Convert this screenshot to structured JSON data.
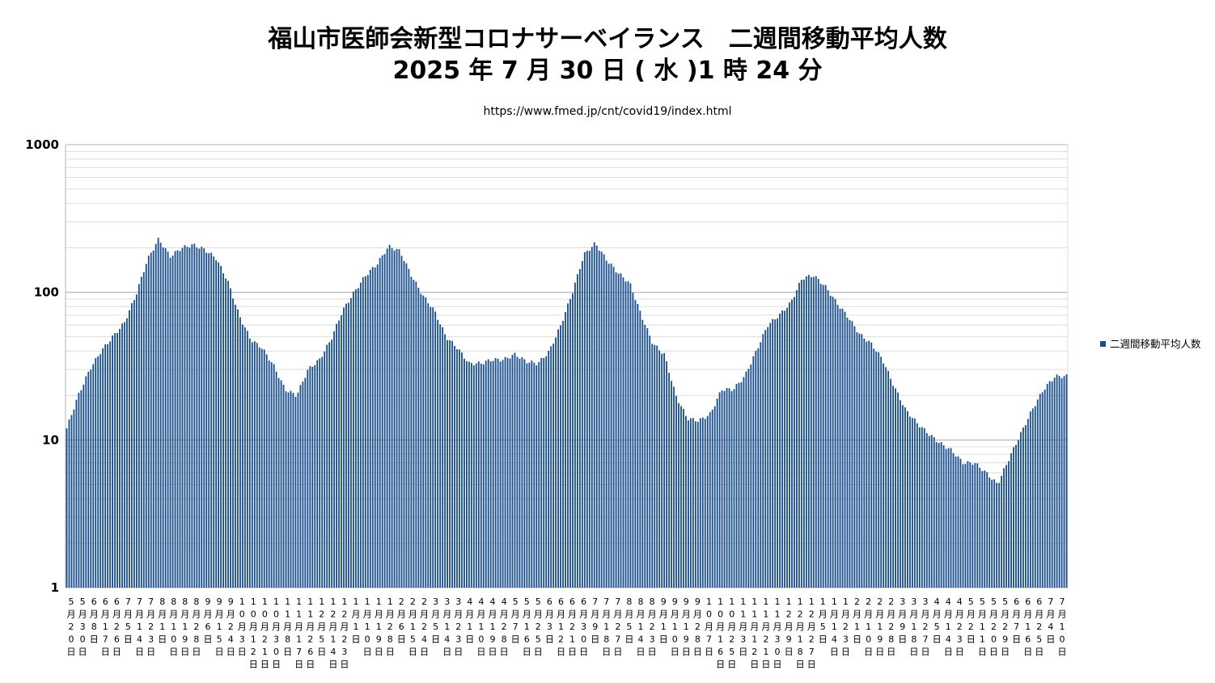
{
  "title_line1": "福山市医師会新型コロナサーベイランス　二週間移動平均人数",
  "title_line2": "2025 年 7 月 30 日 ( 水 )1 時 24 分",
  "subtitle": "https://www.fmed.jp/cnt/covid19/index.html",
  "chart_data": {
    "type": "bar",
    "title": "福山市医師会新型コロナサーベイランス　二週間移動平均人数",
    "y_scale": "log",
    "ylim": [
      1,
      1000
    ],
    "yticks": [
      "1",
      "10",
      "100",
      "1000"
    ],
    "grid": true,
    "legend_position": "right",
    "series": [
      {
        "name": "二週間移動平均人数",
        "color": "#1a4f8c",
        "anchors": [
          [
            "5月20日",
            12
          ],
          [
            "5月30日",
            20
          ],
          [
            "6月8日",
            30
          ],
          [
            "6月17日",
            40
          ],
          [
            "6月26日",
            50
          ],
          [
            "7月5日",
            62
          ],
          [
            "7月14日",
            95
          ],
          [
            "7月23日",
            165
          ],
          [
            "8月1日",
            230
          ],
          [
            "8月10日",
            175
          ],
          [
            "8月19日",
            200
          ],
          [
            "8月28日",
            210
          ],
          [
            "9月6日",
            195
          ],
          [
            "9月15日",
            170
          ],
          [
            "9月24日",
            120
          ],
          [
            "10月3日",
            70
          ],
          [
            "10月12日",
            48
          ],
          [
            "10月21日",
            42
          ],
          [
            "10月30日",
            32
          ],
          [
            "11月8日",
            22
          ],
          [
            "11月17日",
            20
          ],
          [
            "11月26日",
            30
          ],
          [
            "12月5日",
            35
          ],
          [
            "12月14日",
            48
          ],
          [
            "12月23日",
            75
          ],
          [
            "1月1日",
            100
          ],
          [
            "1月10日",
            130
          ],
          [
            "1月19日",
            155
          ],
          [
            "1月28日",
            205
          ],
          [
            "2月6日",
            190
          ],
          [
            "2月15日",
            130
          ],
          [
            "2月24日",
            95
          ],
          [
            "3月5日",
            75
          ],
          [
            "3月14日",
            50
          ],
          [
            "3月23日",
            42
          ],
          [
            "4月1日",
            33
          ],
          [
            "4月10日",
            33
          ],
          [
            "4月19日",
            35
          ],
          [
            "4月28日",
            35
          ],
          [
            "5月7日",
            38
          ],
          [
            "5月16日",
            34
          ],
          [
            "5月25日",
            33
          ],
          [
            "6月3日",
            40
          ],
          [
            "6月12日",
            60
          ],
          [
            "6月21日",
            100
          ],
          [
            "6月30日",
            180
          ],
          [
            "7月9日",
            215
          ],
          [
            "7月18日",
            165
          ],
          [
            "7月27日",
            135
          ],
          [
            "8月5日",
            115
          ],
          [
            "8月14日",
            70
          ],
          [
            "8月23日",
            45
          ],
          [
            "9月1日",
            38
          ],
          [
            "9月10日",
            20
          ],
          [
            "9月19日",
            14
          ],
          [
            "9月28日",
            13.5
          ],
          [
            "10月7日",
            15
          ],
          [
            "10月16日",
            22
          ],
          [
            "10月25日",
            22
          ],
          [
            "11月3日",
            27
          ],
          [
            "11月12日",
            40
          ],
          [
            "11月21日",
            60
          ],
          [
            "11月30日",
            70
          ],
          [
            "12月9日",
            85
          ],
          [
            "12月18日",
            125
          ],
          [
            "12月27日",
            130
          ],
          [
            "1月5日",
            110
          ],
          [
            "1月14日",
            85
          ],
          [
            "1月23日",
            68
          ],
          [
            "2月1日",
            52
          ],
          [
            "2月10日",
            45
          ],
          [
            "2月19日",
            35
          ],
          [
            "2月28日",
            23
          ],
          [
            "3月9日",
            16
          ],
          [
            "3月18日",
            13
          ],
          [
            "3月27日",
            11
          ],
          [
            "4月5日",
            9.5
          ],
          [
            "4月14日",
            8.5
          ],
          [
            "4月23日",
            7
          ],
          [
            "5月2日",
            7
          ],
          [
            "5月11日",
            6
          ],
          [
            "5月20日",
            5
          ],
          [
            "5月29日",
            7.5
          ],
          [
            "6月7日",
            11
          ],
          [
            "6月16日",
            16
          ],
          [
            "6月25日",
            22
          ],
          [
            "7月4日",
            27
          ],
          [
            "7月10日",
            27
          ]
        ]
      }
    ],
    "xlabels": [
      "5月20日",
      "5月30日",
      "6月8日",
      "6月17日",
      "6月26日",
      "7月5日",
      "7月14日",
      "7月23日",
      "8月1日",
      "8月10日",
      "8月19日",
      "8月28日",
      "9月6日",
      "9月15日",
      "9月24日",
      "10月3日",
      "10月12日",
      "10月21日",
      "10月30日",
      "11月8日",
      "11月17日",
      "11月26日",
      "12月5日",
      "12月14日",
      "12月23日",
      "1月1日",
      "1月10日",
      "1月19日",
      "1月28日",
      "2月6日",
      "2月15日",
      "2月24日",
      "3月5日",
      "3月14日",
      "3月23日",
      "4月1日",
      "4月10日",
      "4月19日",
      "4月28日",
      "5月7日",
      "5月16日",
      "5月25日",
      "6月3日",
      "6月12日",
      "6月21日",
      "6月30日",
      "7月9日",
      "7月18日",
      "7月27日",
      "8月5日",
      "8月14日",
      "8月23日",
      "9月1日",
      "9月10日",
      "9月19日",
      "9月28日",
      "10月7日",
      "10月16日",
      "10月25日",
      "11月3日",
      "11月12日",
      "11月21日",
      "11月30日",
      "12月9日",
      "12月18日",
      "12月27日",
      "1月5日",
      "1月14日",
      "1月23日",
      "2月1日",
      "2月10日",
      "2月19日",
      "2月28日",
      "3月9日",
      "3月18日",
      "3月27日",
      "4月5日",
      "4月14日",
      "4月23日",
      "5月2日",
      "5月11日",
      "5月20日",
      "5月29日",
      "6月7日",
      "6月16日",
      "6月25日",
      "7月4日",
      "7月10日"
    ]
  }
}
